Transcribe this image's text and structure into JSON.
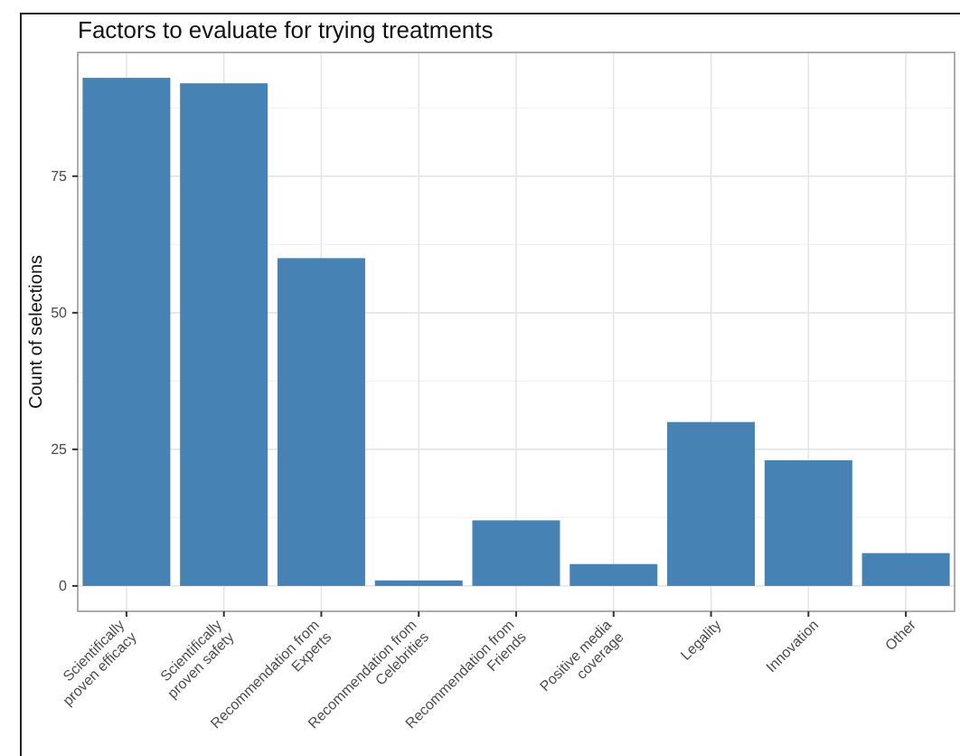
{
  "chart_data": {
    "type": "bar",
    "title": "Factors to evaluate for trying treatments",
    "ylabel": "Count of selections",
    "categories": [
      "Scientifically\nproven efficacy",
      "Scientifically\nproven safety",
      "Recommendation from\nExperts",
      "Recommendation from\nCelebrities",
      "Recommendation from\nFriends",
      "Positive media\ncoverage",
      "Legality",
      "Innovation",
      "Other"
    ],
    "values": [
      93,
      92,
      60,
      1,
      12,
      4,
      30,
      23,
      6
    ],
    "color": "#4682b4",
    "ylim": [
      -4.65,
      97.65
    ],
    "yticks": [
      0,
      25,
      50,
      75
    ],
    "grid": true
  }
}
